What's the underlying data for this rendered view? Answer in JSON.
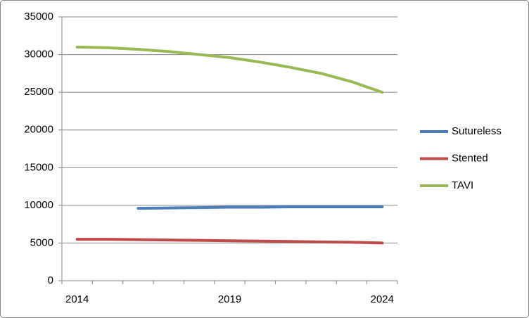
{
  "chart_data": {
    "type": "line",
    "categories": [
      "2014",
      null,
      null,
      null,
      null,
      "2019",
      null,
      null,
      null,
      null,
      "2024"
    ],
    "series": [
      {
        "name": "Sutureless",
        "color": "#4a7ebb",
        "values": [
          null,
          null,
          9600,
          9650,
          9700,
          9750,
          9750,
          9800,
          9800,
          9800,
          9800
        ]
      },
      {
        "name": "Stented",
        "color": "#be4b48",
        "values": [
          5500,
          5500,
          5450,
          5400,
          5350,
          5300,
          5250,
          5200,
          5150,
          5100,
          5000
        ]
      },
      {
        "name": "TAVI",
        "color": "#98b954",
        "values": [
          31000,
          30900,
          30700,
          30400,
          30000,
          29600,
          29000,
          28300,
          27500,
          26400,
          25000
        ]
      }
    ],
    "ylim": [
      0,
      35000
    ],
    "yticks": [
      0,
      5000,
      10000,
      15000,
      20000,
      25000,
      30000,
      35000
    ],
    "grid": true,
    "legend": "right"
  }
}
